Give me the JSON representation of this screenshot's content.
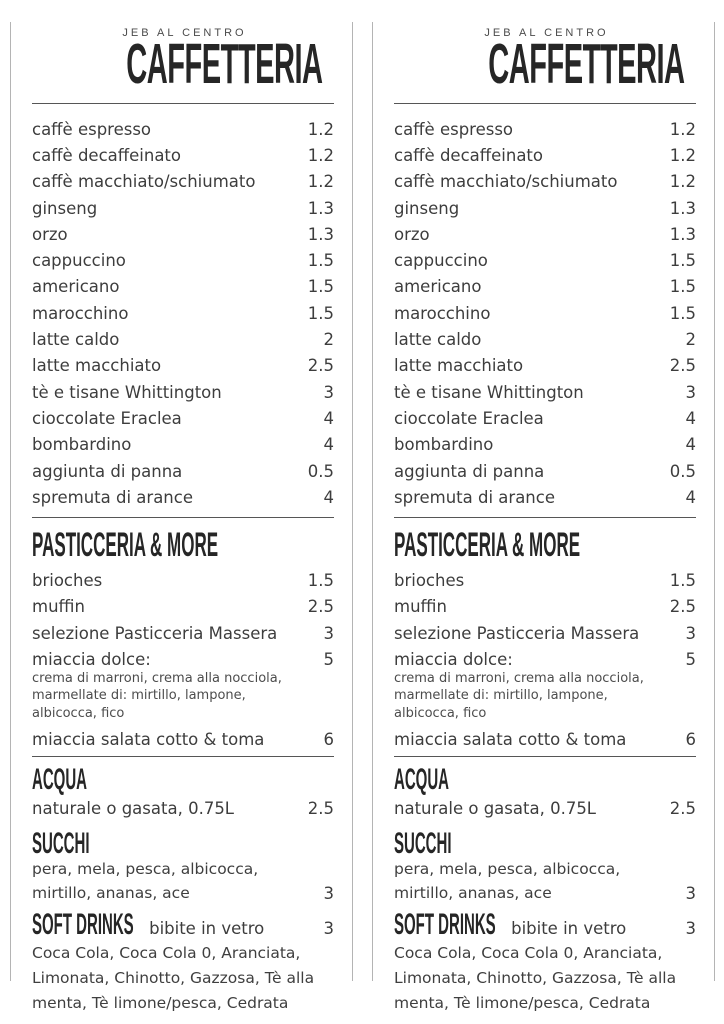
{
  "brand": "JEB AL CENTRO",
  "title": "CAFFETTERIA",
  "caffetteria_items": [
    {
      "name": "caffè espresso",
      "price": "1.2"
    },
    {
      "name": "caffè decaffeinato",
      "price": "1.2"
    },
    {
      "name": "caffè macchiato/schiumato",
      "price": "1.2"
    },
    {
      "name": "ginseng",
      "price": "1.3"
    },
    {
      "name": "orzo",
      "price": "1.3"
    },
    {
      "name": "cappuccino",
      "price": "1.5"
    },
    {
      "name": "americano",
      "price": "1.5"
    },
    {
      "name": "marocchino",
      "price": "1.5"
    },
    {
      "name": "latte caldo",
      "price": "2"
    },
    {
      "name": "latte macchiato",
      "price": "2.5"
    },
    {
      "name": "tè e tisane Whittington",
      "price": "3"
    },
    {
      "name": "cioccolate Eraclea",
      "price": "4"
    },
    {
      "name": "bombardino",
      "price": "4"
    },
    {
      "name": "aggiunta di panna",
      "price": "0.5"
    },
    {
      "name": "spremuta di arance",
      "price": "4"
    }
  ],
  "pasticceria": {
    "heading": "PASTICCERIA & MORE",
    "items": [
      {
        "name": "brioches",
        "price": "1.5"
      },
      {
        "name": "muffin",
        "price": "2.5"
      },
      {
        "name": "selezione Pasticceria Massera",
        "price": "3"
      },
      {
        "name": "miaccia dolce:",
        "price": "5",
        "note_lines": [
          "crema di marroni, crema alla nocciola,",
          "marmellate di: mirtillo, lampone,",
          "albicocca, fico"
        ]
      },
      {
        "name": "miaccia salata cotto & toma",
        "price": "6"
      }
    ]
  },
  "acqua": {
    "heading": "ACQUA",
    "description": "naturale o gasata, 0.75L",
    "price": "2.5"
  },
  "succhi": {
    "heading": "SUCCHI",
    "description_line1": "pera, mela, pesca, albicocca,",
    "description_line2": "mirtillo, ananas, ace",
    "price": "3"
  },
  "soft_drinks": {
    "heading": "SOFT DRINKS",
    "subtitle": "bibite in vetro",
    "price": "3",
    "description_lines": [
      "Coca Cola, Coca Cola 0, Aranciata,",
      "Limonata, Chinotto, Gazzosa, Tè alla",
      "menta, Tè limone/pesca, Cedrata"
    ]
  },
  "colors": {
    "text": "#3d3d3d",
    "heading": "#262626",
    "column_border": "#b4b4b4",
    "rule": "#565656"
  }
}
